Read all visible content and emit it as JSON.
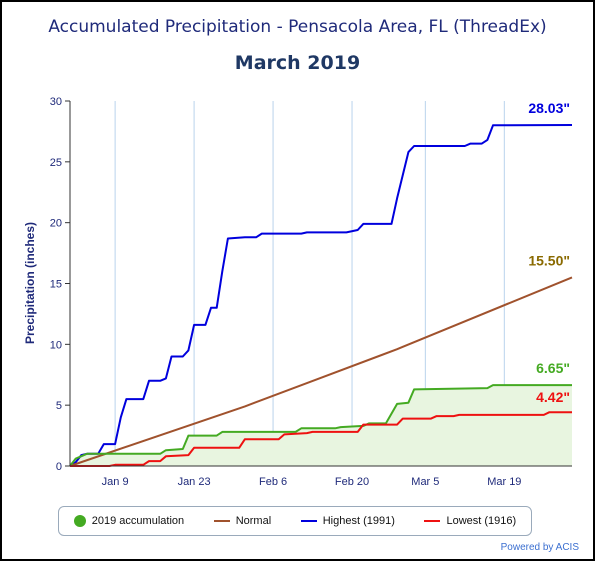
{
  "chart_data": {
    "type": "line",
    "title": "Accumulated Precipitation - Pensacola Area, FL (ThreadEx)",
    "subtitle": "March 2019",
    "ylabel": "Precipitation (inches)",
    "xlabel": "",
    "xlim": [
      "2019-01-01",
      "2019-03-31"
    ],
    "ylim": [
      0,
      30
    ],
    "yticks": [
      0,
      5,
      10,
      15,
      20,
      25,
      30
    ],
    "xticks": [
      {
        "date": "2019-01-09",
        "label": "Jan 9"
      },
      {
        "date": "2019-01-23",
        "label": "Jan 23"
      },
      {
        "date": "2019-02-06",
        "label": "Feb 6"
      },
      {
        "date": "2019-02-20",
        "label": "Feb 20"
      },
      {
        "date": "2019-03-05",
        "label": "Mar 5"
      },
      {
        "date": "2019-03-19",
        "label": "Mar 19"
      }
    ],
    "grid": "vertical",
    "legend_position": "bottom",
    "series": [
      {
        "name": "Highest (1991)",
        "color": "#0000dd",
        "end_label": "28.03\"",
        "points": [
          [
            "2019-01-01",
            0.0
          ],
          [
            "2019-01-02",
            0.3
          ],
          [
            "2019-01-03",
            0.9
          ],
          [
            "2019-01-04",
            1.0
          ],
          [
            "2019-01-06",
            1.0
          ],
          [
            "2019-01-07",
            1.8
          ],
          [
            "2019-01-09",
            1.8
          ],
          [
            "2019-01-10",
            4.0
          ],
          [
            "2019-01-11",
            5.5
          ],
          [
            "2019-01-13",
            5.5
          ],
          [
            "2019-01-14",
            5.5
          ],
          [
            "2019-01-15",
            7.0
          ],
          [
            "2019-01-17",
            7.0
          ],
          [
            "2019-01-18",
            7.2
          ],
          [
            "2019-01-19",
            9.0
          ],
          [
            "2019-01-21",
            9.0
          ],
          [
            "2019-01-22",
            9.5
          ],
          [
            "2019-01-23",
            11.6
          ],
          [
            "2019-01-25",
            11.6
          ],
          [
            "2019-01-26",
            13.0
          ],
          [
            "2019-01-27",
            13.0
          ],
          [
            "2019-01-28",
            16.0
          ],
          [
            "2019-01-29",
            18.7
          ],
          [
            "2019-02-01",
            18.8
          ],
          [
            "2019-02-03",
            18.8
          ],
          [
            "2019-02-04",
            19.1
          ],
          [
            "2019-02-11",
            19.1
          ],
          [
            "2019-02-12",
            19.2
          ],
          [
            "2019-02-19",
            19.2
          ],
          [
            "2019-02-21",
            19.4
          ],
          [
            "2019-02-22",
            19.9
          ],
          [
            "2019-02-27",
            19.9
          ],
          [
            "2019-02-28",
            22.0
          ],
          [
            "2019-03-02",
            25.8
          ],
          [
            "2019-03-03",
            26.3
          ],
          [
            "2019-03-12",
            26.3
          ],
          [
            "2019-03-13",
            26.5
          ],
          [
            "2019-03-15",
            26.5
          ],
          [
            "2019-03-16",
            26.8
          ],
          [
            "2019-03-17",
            28.0
          ],
          [
            "2019-03-31",
            28.03
          ]
        ]
      },
      {
        "name": "Normal",
        "color": "#a0522d",
        "end_label": "15.50\"",
        "points": [
          [
            "2019-01-01",
            0.0
          ],
          [
            "2019-02-01",
            4.9
          ],
          [
            "2019-02-28",
            9.6
          ],
          [
            "2019-03-01",
            9.8
          ],
          [
            "2019-03-31",
            15.5
          ]
        ]
      },
      {
        "name": "2019 accumulation",
        "color": "#44aa22",
        "fill": "#e8f5e0",
        "end_label": "6.65\"",
        "points": [
          [
            "2019-01-01",
            0.0
          ],
          [
            "2019-01-02",
            0.6
          ],
          [
            "2019-01-04",
            1.0
          ],
          [
            "2019-01-17",
            1.0
          ],
          [
            "2019-01-18",
            1.3
          ],
          [
            "2019-01-21",
            1.4
          ],
          [
            "2019-01-22",
            2.5
          ],
          [
            "2019-01-27",
            2.5
          ],
          [
            "2019-01-28",
            2.8
          ],
          [
            "2019-02-10",
            2.8
          ],
          [
            "2019-02-11",
            3.1
          ],
          [
            "2019-02-17",
            3.1
          ],
          [
            "2019-02-18",
            3.2
          ],
          [
            "2019-02-22",
            3.3
          ],
          [
            "2019-02-23",
            3.5
          ],
          [
            "2019-02-26",
            3.5
          ],
          [
            "2019-02-28",
            5.1
          ],
          [
            "2019-03-02",
            5.2
          ],
          [
            "2019-03-03",
            6.3
          ],
          [
            "2019-03-16",
            6.4
          ],
          [
            "2019-03-17",
            6.65
          ],
          [
            "2019-03-31",
            6.65
          ]
        ]
      },
      {
        "name": "Lowest (1916)",
        "color": "#ee1111",
        "end_label": "4.42\"",
        "points": [
          [
            "2019-01-01",
            0.0
          ],
          [
            "2019-01-08",
            0.0
          ],
          [
            "2019-01-09",
            0.1
          ],
          [
            "2019-01-14",
            0.1
          ],
          [
            "2019-01-15",
            0.4
          ],
          [
            "2019-01-17",
            0.4
          ],
          [
            "2019-01-18",
            0.8
          ],
          [
            "2019-01-22",
            0.9
          ],
          [
            "2019-01-23",
            1.5
          ],
          [
            "2019-01-31",
            1.5
          ],
          [
            "2019-02-01",
            2.2
          ],
          [
            "2019-02-07",
            2.2
          ],
          [
            "2019-02-08",
            2.6
          ],
          [
            "2019-02-12",
            2.7
          ],
          [
            "2019-02-13",
            2.8
          ],
          [
            "2019-02-21",
            2.8
          ],
          [
            "2019-02-22",
            3.4
          ],
          [
            "2019-02-28",
            3.4
          ],
          [
            "2019-03-01",
            3.9
          ],
          [
            "2019-03-06",
            3.9
          ],
          [
            "2019-03-07",
            4.1
          ],
          [
            "2019-03-10",
            4.1
          ],
          [
            "2019-03-11",
            4.2
          ],
          [
            "2019-03-26",
            4.2
          ],
          [
            "2019-03-27",
            4.42
          ],
          [
            "2019-03-31",
            4.42
          ]
        ]
      }
    ]
  },
  "legend": {
    "items": [
      {
        "label": "2019 accumulation",
        "color": "#44aa22",
        "marker": "dot"
      },
      {
        "label": "Normal",
        "color": "#a0522d",
        "marker": "line"
      },
      {
        "label": "Highest (1991)",
        "color": "#0000dd",
        "marker": "line"
      },
      {
        "label": "Lowest (1916)",
        "color": "#ee1111",
        "marker": "line"
      }
    ]
  },
  "credit": "Powered by ACIS"
}
